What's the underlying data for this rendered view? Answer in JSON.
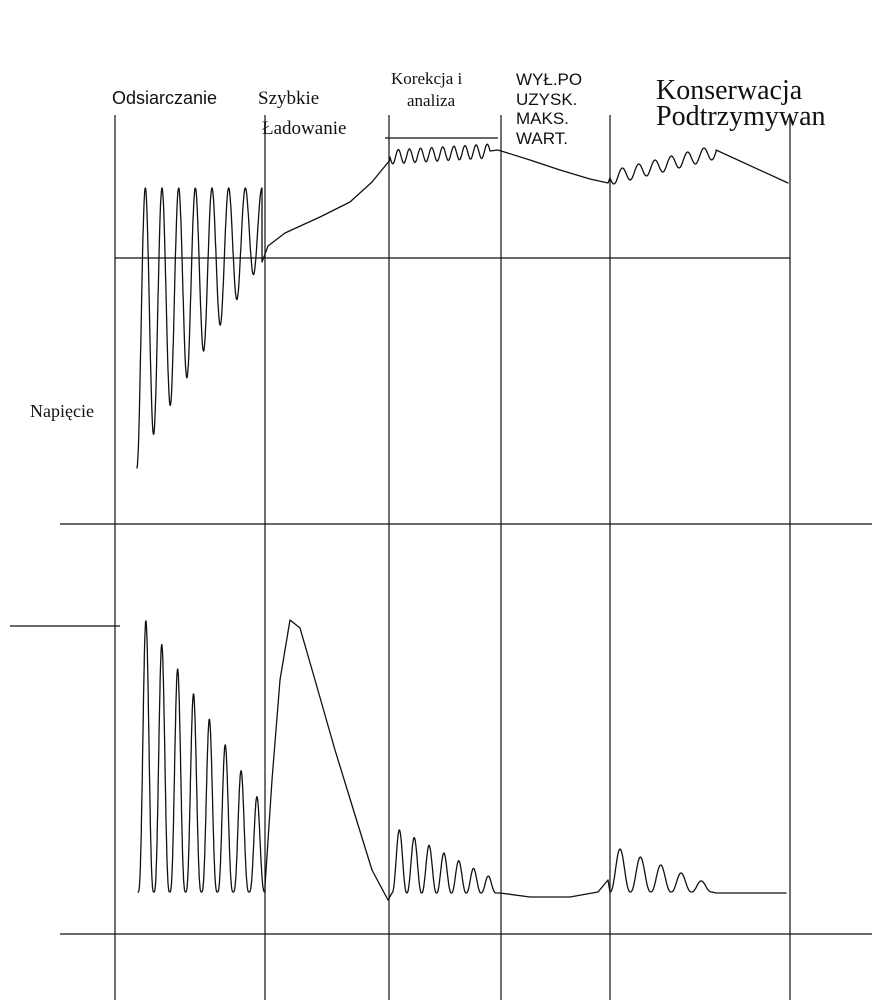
{
  "phases": {
    "desulfation": "Odsiarczanie",
    "fast_charge_line1": "Szybkie",
    "fast_charge_line2": "Ładowanie",
    "correction_line1": "Korekcja i",
    "correction_line2": "analiza",
    "cutoff_lines": [
      "WYŁ.PO",
      "UZYSK.",
      "MAKS.",
      "WART."
    ],
    "maintenance_line1": "Konserwacja",
    "maintenance_line2": "Podtrzymywan"
  },
  "axis_labels": {
    "voltage": "Napięcie"
  }
}
